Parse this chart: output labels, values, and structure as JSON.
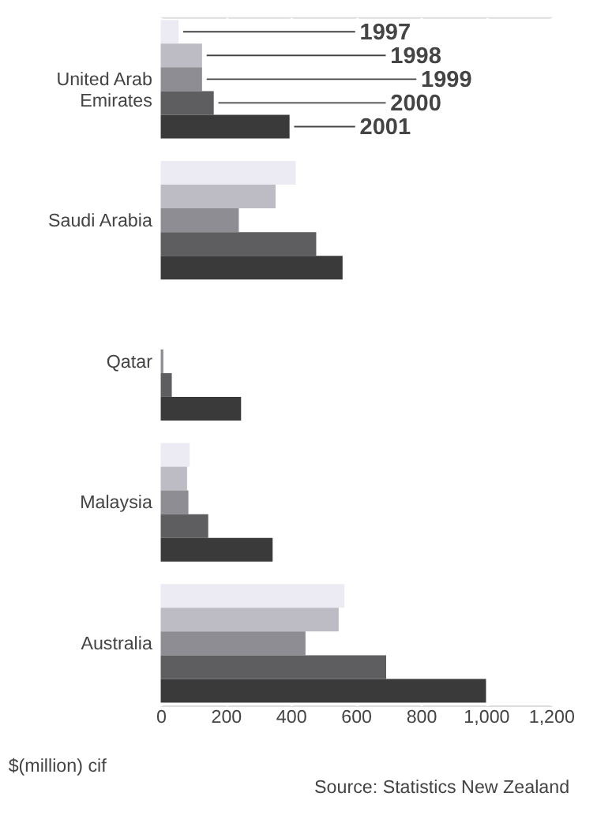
{
  "chart_data": {
    "type": "bar",
    "orientation": "horizontal",
    "xlabel": "$(million) cif",
    "categories": [
      "United Arab Emirates",
      "Saudi Arabia",
      "Qatar",
      "Malaysia",
      "Australia"
    ],
    "series": [
      {
        "name": "1997",
        "color": "#ecebf3",
        "values": [
          55,
          415,
          0,
          89,
          565
        ]
      },
      {
        "name": "1998",
        "color": "#bdbcc4",
        "values": [
          127,
          353,
          0,
          81,
          547
        ]
      },
      {
        "name": "1999",
        "color": "#8d8d93",
        "values": [
          127,
          240,
          8,
          85,
          445
        ]
      },
      {
        "name": "2000",
        "color": "#5e5e60",
        "values": [
          163,
          478,
          34,
          146,
          693
        ]
      },
      {
        "name": "2001",
        "color": "#3a3a3a",
        "values": [
          396,
          559,
          247,
          344,
          1000
        ]
      }
    ],
    "xlim": [
      0,
      1200
    ],
    "xticks": [
      0,
      200,
      400,
      600,
      800,
      {
        "value": 1000,
        "label": "1,000"
      },
      {
        "value": 1200,
        "label": "1,200"
      }
    ],
    "grid": "x",
    "legend": "top right",
    "annotations": [
      "Source: Statistics New Zealand"
    ]
  }
}
